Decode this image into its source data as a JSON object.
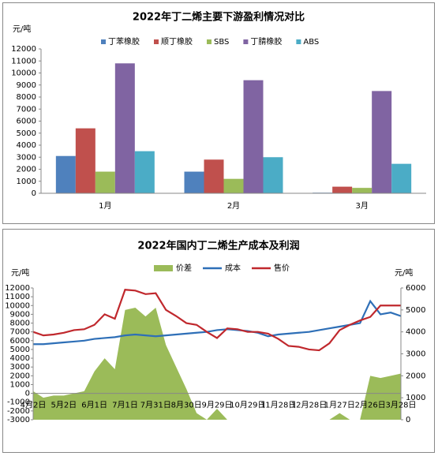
{
  "chart_data": [
    {
      "type": "bar",
      "title": "2022年丁二烯主要下游盈利情况对比",
      "y_label": "元/吨",
      "categories": [
        "1月",
        "2月",
        "3月"
      ],
      "series": [
        {
          "name": "丁苯橡胶",
          "color": "#4f81bd",
          "values": [
            3100,
            1800,
            50
          ]
        },
        {
          "name": "顺丁橡胶",
          "color": "#c0504d",
          "values": [
            5400,
            2800,
            550
          ]
        },
        {
          "name": "SBS",
          "color": "#9bbb59",
          "values": [
            1800,
            1200,
            450
          ]
        },
        {
          "name": "丁腈橡胶",
          "color": "#8064a2",
          "values": [
            10800,
            9400,
            8500
          ]
        },
        {
          "name": "ABS",
          "color": "#4bacc6",
          "values": [
            3500,
            3000,
            2450
          ]
        }
      ],
      "ylim": [
        0,
        12000
      ],
      "yticks": [
        0,
        1000,
        2000,
        3000,
        4000,
        5000,
        6000,
        7000,
        8000,
        9000,
        10000,
        11000,
        12000
      ],
      "grid": false
    },
    {
      "type": "line",
      "title": "2022年国内丁二烯生产成本及利润",
      "y_label": "元/吨",
      "y2_label": "元/吨",
      "categories": [
        "4月2日",
        null,
        null,
        "5月2日",
        null,
        null,
        "6月1日",
        null,
        null,
        "7月1日",
        null,
        null,
        "7月31日",
        null,
        null,
        "8月30日",
        null,
        null,
        "9月29日",
        null,
        null,
        "10月29日",
        null,
        null,
        "11月28日",
        null,
        null,
        "12月28日",
        null,
        null,
        "1月27日",
        null,
        null,
        "2月26日",
        null,
        null,
        "3月28日"
      ],
      "series": [
        {
          "name": "价差",
          "type": "area",
          "axis": "y2",
          "color": "#9bbb59",
          "values": [
            1300,
            1000,
            1100,
            1100,
            1200,
            1300,
            2200,
            2800,
            2300,
            5000,
            5100,
            4700,
            5100,
            3400,
            2400,
            1400,
            300,
            0,
            500,
            0,
            0,
            0,
            0,
            0,
            0,
            0,
            0,
            0,
            0,
            0,
            300,
            0,
            0,
            2000,
            1900,
            2000,
            2100
          ]
        },
        {
          "name": "成本",
          "type": "line",
          "color": "#2e6fb7",
          "values": [
            5600,
            5600,
            5700,
            5800,
            5900,
            6000,
            6200,
            6300,
            6400,
            6600,
            6700,
            6600,
            6500,
            6600,
            6700,
            6800,
            6900,
            7000,
            7200,
            7300,
            7200,
            7100,
            6900,
            6500,
            6700,
            6800,
            6900,
            7000,
            7200,
            7400,
            7600,
            7800,
            8000,
            10500,
            9000,
            9200,
            8800
          ]
        },
        {
          "name": "售价",
          "type": "line",
          "color": "#c0282d",
          "values": [
            7000,
            6600,
            6700,
            6900,
            7200,
            7300,
            7800,
            9000,
            8500,
            11800,
            11700,
            11300,
            11400,
            9500,
            8800,
            8000,
            7800,
            7000,
            6300,
            7400,
            7300,
            7000,
            7000,
            6800,
            6200,
            5400,
            5300,
            5000,
            4900,
            5700,
            7200,
            7800,
            8300,
            8700,
            10000,
            10000,
            10000
          ]
        }
      ],
      "ylim": [
        -3000,
        12000
      ],
      "yticks": [
        -3000,
        -2000,
        -1000,
        0,
        1000,
        2000,
        3000,
        4000,
        5000,
        6000,
        7000,
        8000,
        9000,
        10000,
        11000,
        12000
      ],
      "y2lim": [
        0,
        6000
      ],
      "y2ticks": [
        0,
        1000,
        2000,
        3000,
        4000,
        5000,
        6000
      ],
      "grid": false
    }
  ]
}
